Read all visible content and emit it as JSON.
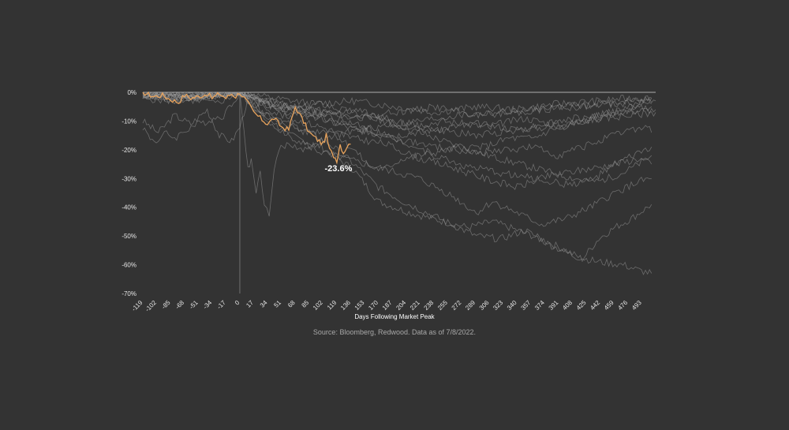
{
  "chart_data": {
    "type": "line",
    "xlabel": "Days Following Market Peak",
    "ylabel": "",
    "source": "Source: Bloomberg, Redwood. Data as of 7/8/2022.",
    "xlim": [
      -119,
      510
    ],
    "ylim": [
      -70,
      0
    ],
    "x_ticks": [
      -119,
      -102,
      -85,
      -68,
      -51,
      -34,
      -17,
      0,
      17,
      34,
      51,
      68,
      85,
      102,
      119,
      136,
      153,
      170,
      187,
      204,
      221,
      238,
      255,
      272,
      289,
      306,
      323,
      340,
      357,
      374,
      391,
      408,
      425,
      442,
      459,
      476,
      493
    ],
    "y_ticks": [
      0,
      -10,
      -20,
      -30,
      -40,
      -50,
      -60,
      -70
    ],
    "y_tick_labels": [
      "0%",
      "-10%",
      "-20%",
      "-30%",
      "-40%",
      "-50%",
      "-60%",
      "-70%"
    ],
    "grid": false,
    "highlight": {
      "color": "#e8a35c",
      "annotation": "-23.6%",
      "annotation_x": 119,
      "annotation_y": -23.6,
      "points": [
        [
          -119,
          0
        ],
        [
          -105,
          -1.5
        ],
        [
          -95,
          -1
        ],
        [
          -85,
          -2.5
        ],
        [
          -75,
          -3.5
        ],
        [
          -68,
          -1
        ],
        [
          -60,
          -2
        ],
        [
          -51,
          -1.5
        ],
        [
          -40,
          -0.5
        ],
        [
          -34,
          -2
        ],
        [
          -25,
          -0.5
        ],
        [
          -17,
          -2
        ],
        [
          -10,
          -0.5
        ],
        [
          -5,
          -1.5
        ],
        [
          0,
          0
        ],
        [
          8,
          -3
        ],
        [
          17,
          -7
        ],
        [
          25,
          -9
        ],
        [
          34,
          -11
        ],
        [
          42,
          -9
        ],
        [
          51,
          -12
        ],
        [
          60,
          -13
        ],
        [
          68,
          -5
        ],
        [
          76,
          -9
        ],
        [
          85,
          -14
        ],
        [
          93,
          -16
        ],
        [
          102,
          -18
        ],
        [
          106,
          -15
        ],
        [
          110,
          -20
        ],
        [
          115,
          -22
        ],
        [
          119,
          -23.6
        ],
        [
          123,
          -18
        ],
        [
          127,
          -21
        ],
        [
          131,
          -19
        ],
        [
          136,
          -18
        ]
      ]
    },
    "series_color": "#9a9a9a",
    "series": [
      {
        "points": [
          [
            -119,
            -10
          ],
          [
            -100,
            -14
          ],
          [
            -80,
            -8
          ],
          [
            -60,
            -11
          ],
          [
            -40,
            -6
          ],
          [
            -25,
            -15
          ],
          [
            -10,
            -17
          ],
          [
            0,
            -12
          ],
          [
            10,
            -2
          ],
          [
            30,
            -4
          ],
          [
            60,
            -6
          ],
          [
            100,
            -4
          ],
          [
            150,
            -8
          ],
          [
            200,
            -12
          ],
          [
            250,
            -10
          ],
          [
            300,
            -12
          ],
          [
            350,
            -9
          ],
          [
            400,
            -12
          ],
          [
            450,
            -7
          ],
          [
            510,
            -6
          ]
        ]
      },
      {
        "points": [
          [
            -119,
            -12
          ],
          [
            -110,
            -16
          ],
          [
            -100,
            -17
          ],
          [
            -90,
            -14
          ],
          [
            -80,
            -16
          ],
          [
            -60,
            -12
          ],
          [
            -40,
            -10
          ],
          [
            -20,
            -8
          ],
          [
            0,
            0
          ],
          [
            5,
            -14
          ],
          [
            10,
            -26
          ],
          [
            14,
            -24
          ],
          [
            20,
            -34
          ],
          [
            25,
            -28
          ],
          [
            30,
            -38
          ],
          [
            36,
            -44
          ],
          [
            42,
            -26
          ],
          [
            48,
            -20
          ],
          [
            60,
            -18
          ],
          [
            80,
            -20
          ],
          [
            100,
            -17
          ],
          [
            130,
            -14
          ],
          [
            170,
            -12
          ],
          [
            220,
            -10
          ],
          [
            270,
            -8
          ],
          [
            320,
            -7
          ],
          [
            370,
            -6
          ],
          [
            420,
            -5
          ],
          [
            470,
            -4
          ],
          [
            510,
            -3
          ]
        ]
      },
      {
        "points": [
          [
            -119,
            -2
          ],
          [
            -90,
            -3
          ],
          [
            -60,
            -2
          ],
          [
            -30,
            -4
          ],
          [
            0,
            0
          ],
          [
            20,
            -6
          ],
          [
            50,
            -10
          ],
          [
            80,
            -14
          ],
          [
            110,
            -13
          ],
          [
            140,
            -20
          ],
          [
            160,
            -26
          ],
          [
            175,
            -27
          ],
          [
            200,
            -23
          ],
          [
            240,
            -21
          ],
          [
            270,
            -19
          ],
          [
            300,
            -19
          ],
          [
            330,
            -16
          ],
          [
            360,
            -16
          ],
          [
            390,
            -12
          ],
          [
            420,
            -10
          ],
          [
            450,
            -9
          ],
          [
            480,
            -8
          ],
          [
            510,
            -7
          ]
        ]
      },
      {
        "points": [
          [
            -119,
            -1
          ],
          [
            -80,
            -2
          ],
          [
            -40,
            -1.5
          ],
          [
            0,
            0
          ],
          [
            20,
            -5
          ],
          [
            50,
            -10
          ],
          [
            80,
            -13
          ],
          [
            110,
            -18
          ],
          [
            140,
            -25
          ],
          [
            170,
            -33
          ],
          [
            200,
            -38
          ],
          [
            230,
            -42
          ],
          [
            260,
            -46
          ],
          [
            290,
            -50
          ],
          [
            320,
            -51
          ],
          [
            350,
            -48
          ],
          [
            380,
            -53
          ],
          [
            410,
            -57
          ],
          [
            440,
            -59
          ],
          [
            470,
            -60
          ],
          [
            490,
            -62
          ],
          [
            505,
            -63
          ]
        ]
      },
      {
        "points": [
          [
            -119,
            -1
          ],
          [
            -60,
            -2
          ],
          [
            0,
            0
          ],
          [
            20,
            -6
          ],
          [
            40,
            -12
          ],
          [
            70,
            -16
          ],
          [
            100,
            -19
          ],
          [
            140,
            -27
          ],
          [
            170,
            -38
          ],
          [
            210,
            -42
          ],
          [
            250,
            -45
          ],
          [
            280,
            -47
          ],
          [
            310,
            -45
          ],
          [
            340,
            -48
          ],
          [
            370,
            -51
          ],
          [
            400,
            -55
          ],
          [
            420,
            -58
          ],
          [
            440,
            -51
          ],
          [
            460,
            -47
          ],
          [
            480,
            -44
          ],
          [
            495,
            -41
          ],
          [
            505,
            -39
          ]
        ]
      },
      {
        "points": [
          [
            -119,
            -2
          ],
          [
            -60,
            -3
          ],
          [
            0,
            0
          ],
          [
            30,
            -8
          ],
          [
            60,
            -15
          ],
          [
            100,
            -21
          ],
          [
            140,
            -24
          ],
          [
            180,
            -27
          ],
          [
            220,
            -30
          ],
          [
            260,
            -36
          ],
          [
            290,
            -42
          ],
          [
            310,
            -38
          ],
          [
            340,
            -42
          ],
          [
            370,
            -46
          ],
          [
            400,
            -44
          ],
          [
            430,
            -40
          ],
          [
            460,
            -35
          ],
          [
            490,
            -31
          ],
          [
            505,
            -30
          ]
        ]
      },
      {
        "points": [
          [
            -119,
            -1
          ],
          [
            -60,
            -2
          ],
          [
            0,
            0
          ],
          [
            30,
            -5
          ],
          [
            60,
            -9
          ],
          [
            100,
            -12
          ],
          [
            140,
            -16
          ],
          [
            180,
            -18
          ],
          [
            220,
            -23
          ],
          [
            260,
            -26
          ],
          [
            300,
            -30
          ],
          [
            340,
            -33
          ],
          [
            380,
            -29
          ],
          [
            420,
            -27
          ],
          [
            460,
            -25
          ],
          [
            490,
            -23
          ],
          [
            505,
            -25
          ]
        ]
      },
      {
        "points": [
          [
            -119,
            -1
          ],
          [
            -60,
            -2
          ],
          [
            0,
            0
          ],
          [
            30,
            -4
          ],
          [
            60,
            -7
          ],
          [
            100,
            -9
          ],
          [
            150,
            -13
          ],
          [
            200,
            -17
          ],
          [
            240,
            -22
          ],
          [
            280,
            -26
          ],
          [
            320,
            -28
          ],
          [
            360,
            -30
          ],
          [
            400,
            -32
          ],
          [
            430,
            -31
          ],
          [
            460,
            -25
          ],
          [
            490,
            -21
          ],
          [
            505,
            -19
          ]
        ]
      },
      {
        "points": [
          [
            -119,
            -0.5
          ],
          [
            -60,
            -1
          ],
          [
            0,
            0
          ],
          [
            30,
            -3
          ],
          [
            80,
            -6
          ],
          [
            130,
            -8
          ],
          [
            180,
            -10
          ],
          [
            230,
            -15
          ],
          [
            280,
            -20
          ],
          [
            330,
            -24
          ],
          [
            370,
            -27
          ],
          [
            410,
            -30
          ],
          [
            440,
            -31
          ],
          [
            470,
            -28
          ],
          [
            495,
            -24
          ],
          [
            505,
            -22
          ]
        ]
      },
      {
        "points": [
          [
            -119,
            0
          ],
          [
            -60,
            -1
          ],
          [
            0,
            0
          ],
          [
            40,
            -5
          ],
          [
            90,
            -8
          ],
          [
            140,
            -6
          ],
          [
            190,
            -10
          ],
          [
            240,
            -13
          ],
          [
            290,
            -15
          ],
          [
            340,
            -13
          ],
          [
            390,
            -10
          ],
          [
            440,
            -8
          ],
          [
            480,
            -5
          ],
          [
            505,
            -4
          ]
        ]
      },
      {
        "points": [
          [
            -119,
            0
          ],
          [
            -60,
            -0.5
          ],
          [
            0,
            0
          ],
          [
            40,
            -2
          ],
          [
            90,
            -4
          ],
          [
            140,
            -3
          ],
          [
            190,
            -5
          ],
          [
            240,
            -7
          ],
          [
            290,
            -5
          ],
          [
            340,
            -6
          ],
          [
            390,
            -4
          ],
          [
            440,
            -3
          ],
          [
            480,
            -2
          ],
          [
            505,
            -2
          ]
        ]
      },
      {
        "points": [
          [
            -119,
            0
          ],
          [
            -60,
            -1
          ],
          [
            0,
            0
          ],
          [
            40,
            -3
          ],
          [
            90,
            -8
          ],
          [
            140,
            -13
          ],
          [
            190,
            -15
          ],
          [
            240,
            -13
          ],
          [
            290,
            -11
          ],
          [
            340,
            -13
          ],
          [
            390,
            -12
          ],
          [
            440,
            -9
          ],
          [
            480,
            -6
          ],
          [
            505,
            -5
          ]
        ]
      },
      {
        "points": [
          [
            -119,
            0
          ],
          [
            -60,
            -1
          ],
          [
            0,
            0
          ],
          [
            40,
            -4
          ],
          [
            90,
            -6
          ],
          [
            140,
            -9
          ],
          [
            190,
            -7
          ],
          [
            240,
            -5
          ],
          [
            290,
            -8
          ],
          [
            340,
            -7
          ],
          [
            390,
            -5
          ],
          [
            440,
            -4
          ],
          [
            480,
            -3
          ],
          [
            505,
            -2
          ]
        ]
      },
      {
        "points": [
          [
            -119,
            -1
          ],
          [
            -60,
            -2
          ],
          [
            0,
            0
          ],
          [
            40,
            -4
          ],
          [
            90,
            -7
          ],
          [
            140,
            -11
          ],
          [
            190,
            -16
          ],
          [
            240,
            -19
          ],
          [
            290,
            -21
          ],
          [
            330,
            -20
          ],
          [
            360,
            -19
          ],
          [
            390,
            -22
          ],
          [
            420,
            -19
          ],
          [
            450,
            -16
          ],
          [
            480,
            -13
          ],
          [
            500,
            -12
          ],
          [
            505,
            -14
          ]
        ]
      }
    ]
  }
}
